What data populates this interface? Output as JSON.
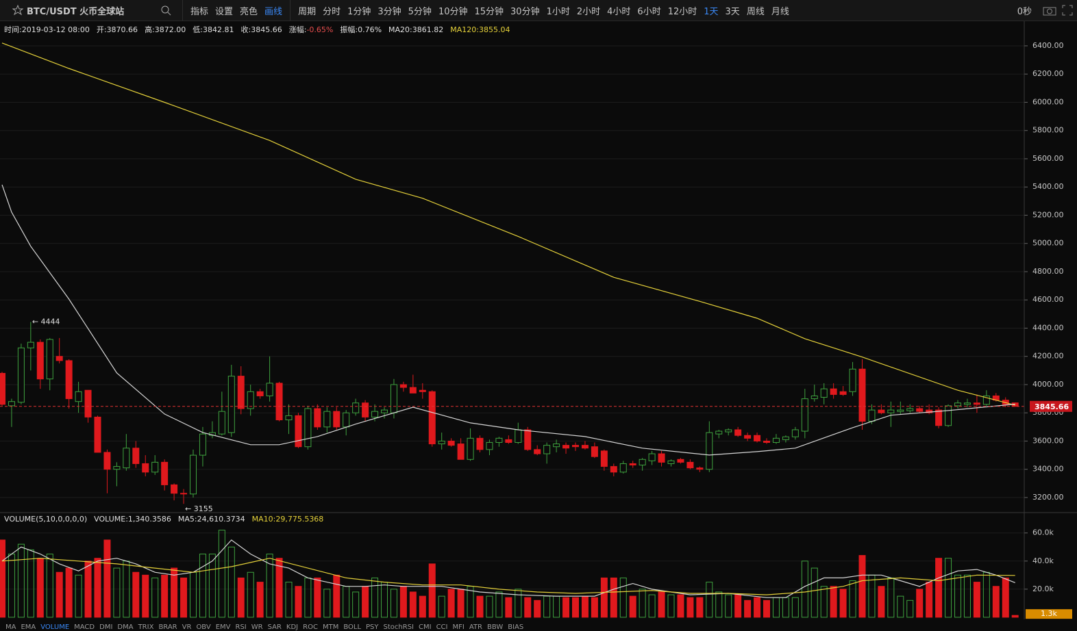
{
  "toolbar": {
    "symbol": "BTC/USDT 火币全球站",
    "tools": [
      "指标",
      "设置",
      "亮色",
      "画线"
    ],
    "period_label": "周期",
    "periods": [
      "分时",
      "1分钟",
      "3分钟",
      "5分钟",
      "10分钟",
      "15分钟",
      "30分钟",
      "1小时",
      "2小时",
      "4小时",
      "6小时",
      "12小时",
      "1天",
      "3天",
      "周线",
      "月线"
    ],
    "active_period": "1天",
    "countdown": "0秒"
  },
  "info": [
    {
      "label": "时间:",
      "value": "2019-03-12 08:00"
    },
    {
      "label": "开:",
      "value": "3870.66"
    },
    {
      "label": "高:",
      "value": "3872.00"
    },
    {
      "label": "低:",
      "value": "3842.81"
    },
    {
      "label": "收:",
      "value": "3845.66"
    },
    {
      "label": "涨幅:",
      "value": "-0.65%",
      "color": "#e84e4e"
    },
    {
      "label": "振幅:",
      "value": "0.76%"
    },
    {
      "label": "MA20:",
      "value": "3861.82"
    },
    {
      "label": "MA120:",
      "value": "3855.04",
      "color": "#e6d23a"
    }
  ],
  "volume_info": [
    {
      "label": "VOLUME(5,10,0,0,0,0)"
    },
    {
      "label": "VOLUME:",
      "value": "1,340.3586"
    },
    {
      "label": "MA5:",
      "value": "24,610.3734"
    },
    {
      "label": "MA10:",
      "value": "29,775.5368",
      "color": "#e6d23a"
    }
  ],
  "indicator_tabs": [
    "MA",
    "EMA",
    "VOLUME",
    "MACD",
    "DMI",
    "DMA",
    "TRIX",
    "BRAR",
    "VR",
    "OBV",
    "EMV",
    "RSI",
    "WR",
    "SAR",
    "KDJ",
    "ROC",
    "MTM",
    "BOLL",
    "PSY",
    "StochRSI",
    "CMI",
    "CCI",
    "MFI",
    "ATR",
    "BBW",
    "BIAS"
  ],
  "chart_data": [
    {
      "type": "candlestick",
      "up_color": "#3fa33f",
      "down_color": "#e0191d",
      "ylim": [
        3098,
        6555
      ],
      "yticks": [
        {
          "value": 3200,
          "label": "3200.00"
        },
        {
          "value": 3400,
          "label": "3400.00"
        },
        {
          "value": 3600,
          "label": "3600.00"
        },
        {
          "value": 3800,
          "label": "3800.00"
        },
        {
          "value": 4000,
          "label": "4000.00"
        },
        {
          "value": 4200,
          "label": "4200.00"
        },
        {
          "value": 4400,
          "label": "4400.00"
        },
        {
          "value": 4600,
          "label": "4600.00"
        },
        {
          "value": 4800,
          "label": "4800.00"
        },
        {
          "value": 5000,
          "label": "5000.00"
        },
        {
          "value": 5200,
          "label": "5200.00"
        },
        {
          "value": 5400,
          "label": "5400.00"
        },
        {
          "value": 5600,
          "label": "5600.00"
        },
        {
          "value": 5800,
          "label": "5800.00"
        },
        {
          "value": 6000,
          "label": "6000.00"
        },
        {
          "value": 6200,
          "label": "6200.00"
        },
        {
          "value": 6400,
          "label": "6400.00"
        }
      ],
      "grid": true,
      "candles": [
        [
          4080,
          4090,
          3850,
          3860
        ],
        [
          3850,
          3900,
          3700,
          3880
        ],
        [
          3875,
          4290,
          3860,
          4260
        ],
        [
          4260,
          4444,
          4100,
          4300
        ],
        [
          4300,
          4320,
          3970,
          4040
        ],
        [
          4040,
          4330,
          3960,
          4320
        ],
        [
          4200,
          4330,
          4150,
          4170
        ],
        [
          4170,
          4180,
          3830,
          3900
        ],
        [
          3880,
          4020,
          3800,
          3950
        ],
        [
          3960,
          3960,
          3730,
          3770
        ],
        [
          3770,
          3780,
          3520,
          3520
        ],
        [
          3520,
          3540,
          3230,
          3400
        ],
        [
          3400,
          3450,
          3280,
          3420
        ],
        [
          3410,
          3650,
          3390,
          3550
        ],
        [
          3550,
          3600,
          3410,
          3440
        ],
        [
          3440,
          3500,
          3350,
          3380
        ],
        [
          3380,
          3500,
          3360,
          3450
        ],
        [
          3450,
          3470,
          3250,
          3290
        ],
        [
          3290,
          3300,
          3180,
          3230
        ],
        [
          3230,
          3260,
          3155,
          3225
        ],
        [
          3225,
          3540,
          3200,
          3500
        ],
        [
          3500,
          3700,
          3420,
          3650
        ],
        [
          3640,
          3740,
          3620,
          3660
        ],
        [
          3650,
          3950,
          3640,
          3810
        ],
        [
          3660,
          4140,
          3630,
          4060
        ],
        [
          4060,
          4130,
          3790,
          3830
        ],
        [
          3830,
          4000,
          3780,
          3950
        ],
        [
          3950,
          3970,
          3900,
          3920
        ],
        [
          3920,
          4200,
          3880,
          4010
        ],
        [
          4010,
          4020,
          3740,
          3750
        ],
        [
          3750,
          3860,
          3650,
          3780
        ],
        [
          3780,
          3800,
          3550,
          3560
        ],
        [
          3560,
          3850,
          3540,
          3830
        ],
        [
          3830,
          3860,
          3680,
          3700
        ],
        [
          3700,
          3840,
          3660,
          3810
        ],
        [
          3810,
          3840,
          3680,
          3700
        ],
        [
          3700,
          3820,
          3640,
          3800
        ],
        [
          3800,
          3900,
          3780,
          3870
        ],
        [
          3870,
          3890,
          3740,
          3770
        ],
        [
          3770,
          3860,
          3740,
          3810
        ],
        [
          3800,
          3840,
          3760,
          3820
        ],
        [
          3800,
          4040,
          3760,
          4000
        ],
        [
          4000,
          4020,
          3950,
          3980
        ],
        [
          3980,
          4070,
          3940,
          3940
        ],
        [
          3960,
          4010,
          3900,
          3950
        ],
        [
          3950,
          3960,
          3560,
          3580
        ],
        [
          3580,
          3660,
          3540,
          3600
        ],
        [
          3600,
          3620,
          3560,
          3570
        ],
        [
          3580,
          3620,
          3470,
          3470
        ],
        [
          3470,
          3690,
          3460,
          3620
        ],
        [
          3620,
          3640,
          3520,
          3540
        ],
        [
          3540,
          3610,
          3500,
          3590
        ],
        [
          3590,
          3630,
          3560,
          3620
        ],
        [
          3610,
          3640,
          3580,
          3590
        ],
        [
          3590,
          3730,
          3580,
          3680
        ],
        [
          3680,
          3700,
          3530,
          3540
        ],
        [
          3540,
          3570,
          3500,
          3510
        ],
        [
          3510,
          3590,
          3440,
          3570
        ],
        [
          3560,
          3610,
          3520,
          3580
        ],
        [
          3570,
          3590,
          3510,
          3550
        ],
        [
          3570,
          3590,
          3530,
          3560
        ],
        [
          3570,
          3600,
          3540,
          3550
        ],
        [
          3560,
          3590,
          3480,
          3490
        ],
        [
          3530,
          3540,
          3390,
          3420
        ],
        [
          3420,
          3440,
          3350,
          3380
        ],
        [
          3380,
          3460,
          3370,
          3440
        ],
        [
          3440,
          3460,
          3410,
          3430
        ],
        [
          3430,
          3480,
          3390,
          3470
        ],
        [
          3460,
          3530,
          3430,
          3510
        ],
        [
          3510,
          3530,
          3420,
          3450
        ],
        [
          3440,
          3470,
          3420,
          3460
        ],
        [
          3470,
          3480,
          3440,
          3450
        ],
        [
          3450,
          3470,
          3400,
          3410
        ],
        [
          3410,
          3420,
          3380,
          3400
        ],
        [
          3400,
          3740,
          3380,
          3660
        ],
        [
          3650,
          3680,
          3620,
          3670
        ],
        [
          3665,
          3690,
          3640,
          3680
        ],
        [
          3680,
          3700,
          3630,
          3640
        ],
        [
          3640,
          3660,
          3600,
          3620
        ],
        [
          3640,
          3660,
          3590,
          3600
        ],
        [
          3600,
          3620,
          3580,
          3590
        ],
        [
          3590,
          3650,
          3580,
          3620
        ],
        [
          3610,
          3640,
          3590,
          3630
        ],
        [
          3630,
          3700,
          3610,
          3680
        ],
        [
          3670,
          3970,
          3620,
          3900
        ],
        [
          3900,
          4000,
          3880,
          3920
        ],
        [
          3910,
          4010,
          3860,
          3970
        ],
        [
          3970,
          4010,
          3900,
          3930
        ],
        [
          3950,
          3990,
          3920,
          3930
        ],
        [
          3950,
          4160,
          3920,
          4110
        ],
        [
          4110,
          4180,
          3680,
          3740
        ],
        [
          3740,
          3860,
          3720,
          3820
        ],
        [
          3820,
          3860,
          3790,
          3800
        ],
        [
          3800,
          3880,
          3700,
          3820
        ],
        [
          3810,
          3880,
          3790,
          3820
        ],
        [
          3815,
          3860,
          3800,
          3830
        ],
        [
          3830,
          3850,
          3800,
          3810
        ],
        [
          3820,
          3860,
          3790,
          3800
        ],
        [
          3820,
          3840,
          3690,
          3710
        ],
        [
          3710,
          3860,
          3700,
          3850
        ],
        [
          3850,
          3890,
          3830,
          3870
        ],
        [
          3860,
          3900,
          3840,
          3870
        ],
        [
          3870,
          3930,
          3800,
          3860
        ],
        [
          3860,
          3960,
          3850,
          3920
        ],
        [
          3920,
          3940,
          3880,
          3890
        ],
        [
          3890,
          3910,
          3840,
          3860
        ],
        [
          3870.66,
          3872,
          3842.81,
          3845.66
        ]
      ],
      "series": [
        {
          "color": "#e6d23a",
          "x": [
            0,
            7,
            17,
            28,
            37,
            44,
            54,
            64,
            73,
            79,
            84,
            90,
            100,
            106
          ],
          "values": [
            6420,
            6240,
            6000,
            5730,
            5455,
            5320,
            5050,
            4760,
            4590,
            4470,
            4325,
            4195,
            3960,
            3855.04
          ]
        },
        {
          "color": "#d8d8d8",
          "x": [
            0,
            1,
            3,
            7,
            12,
            17,
            21,
            26,
            29,
            33,
            37,
            43,
            49,
            54,
            61,
            67,
            74,
            79,
            83,
            89,
            93,
            99,
            106
          ],
          "values": [
            5416,
            5222,
            4980,
            4606,
            4083,
            3792,
            3661,
            3574,
            3574,
            3632,
            3720,
            3840,
            3729,
            3680,
            3632,
            3550,
            3501,
            3525,
            3550,
            3695,
            3783,
            3816,
            3861.82
          ]
        }
      ],
      "last_price": 3845.66,
      "high_marker": {
        "value": 4444,
        "label": "← 4444"
      },
      "low_marker": {
        "value": 3155,
        "label": "← 3155"
      }
    },
    {
      "type": "bar",
      "up_color": "#3fa33f",
      "down_color": "#e0191d",
      "ylim": [
        -1500,
        74000
      ],
      "yticks": [
        {
          "value": 20000,
          "label": "20.0k"
        },
        {
          "value": 40000,
          "label": "40.0k"
        },
        {
          "value": 60000,
          "label": "60.0k"
        }
      ],
      "values": [
        55000,
        45000,
        52000,
        48000,
        42000,
        45000,
        32000,
        35000,
        30000,
        40000,
        42000,
        55000,
        35000,
        40000,
        32000,
        30000,
        28000,
        30000,
        35000,
        28000,
        32000,
        45000,
        45000,
        62000,
        50000,
        28000,
        32000,
        25000,
        45000,
        42000,
        25000,
        22000,
        28000,
        28000,
        20000,
        30000,
        22000,
        18000,
        22000,
        28000,
        25000,
        20000,
        22000,
        18000,
        15000,
        38000,
        15000,
        20000,
        20000,
        22000,
        15000,
        15000,
        18000,
        14000,
        20000,
        14000,
        12000,
        15000,
        15000,
        14000,
        14000,
        15000,
        14000,
        28000,
        28000,
        28000,
        15000,
        20000,
        16000,
        18000,
        16000,
        16000,
        14000,
        14000,
        25000,
        18000,
        16000,
        16000,
        12000,
        14000,
        12000,
        14000,
        14000,
        14000,
        40000,
        35000,
        22000,
        22000,
        20000,
        26000,
        44000,
        30000,
        22000,
        28000,
        15000,
        12000,
        20000,
        25000,
        42000,
        42000,
        30000,
        30000,
        25000,
        32000,
        22000,
        28000,
        1340.3586
      ],
      "series": [
        {
          "color": "#d8d8d8",
          "x": [
            0,
            2,
            4,
            6,
            8,
            10,
            12,
            14,
            16,
            18,
            20,
            22,
            24,
            26,
            28,
            30,
            32,
            34,
            36,
            38,
            40,
            42,
            44,
            46,
            48,
            50,
            54,
            58,
            62,
            64,
            66,
            68,
            72,
            76,
            80,
            82,
            84,
            86,
            88,
            90,
            92,
            94,
            96,
            98,
            100,
            102,
            104,
            106
          ],
          "values": [
            40000,
            50000,
            45000,
            38000,
            33000,
            40000,
            42000,
            38000,
            32000,
            30000,
            32000,
            40000,
            55000,
            45000,
            38000,
            35000,
            28000,
            25000,
            22000,
            22000,
            23000,
            22000,
            22000,
            22000,
            20000,
            18000,
            16000,
            15000,
            15000,
            20000,
            24000,
            20000,
            16000,
            17000,
            14000,
            14000,
            22000,
            28000,
            28000,
            30000,
            30000,
            26000,
            22000,
            28000,
            33000,
            34000,
            30000,
            24610.3734
          ]
        },
        {
          "color": "#e6d23a",
          "x": [
            0,
            4,
            8,
            12,
            16,
            20,
            24,
            28,
            32,
            36,
            40,
            44,
            48,
            52,
            56,
            60,
            64,
            68,
            72,
            76,
            80,
            84,
            88,
            90,
            94,
            98,
            102,
            106
          ],
          "values": [
            40000,
            42000,
            40000,
            38000,
            35000,
            32000,
            36000,
            42000,
            35000,
            28000,
            25000,
            23000,
            23000,
            20000,
            18000,
            17000,
            18000,
            19000,
            17000,
            17000,
            16000,
            18000,
            22000,
            26000,
            28000,
            26000,
            30000,
            29775.5368
          ]
        }
      ],
      "last_value": {
        "value": 1340.3586,
        "label": "1.3k"
      }
    }
  ]
}
